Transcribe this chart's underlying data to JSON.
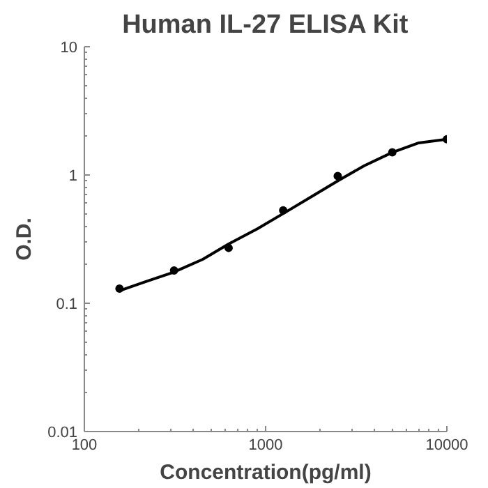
{
  "chart_data": {
    "type": "scatter",
    "title": "Human IL-27 ELISA Kit",
    "xlabel": "Concentration(pg/ml)",
    "ylabel": "O.D.",
    "log": "xy",
    "grid": false,
    "marker": "circle",
    "xlim": [
      100,
      10000
    ],
    "xticks": [
      100,
      1000,
      10000
    ],
    "ylim": [
      0.01,
      10
    ],
    "yticks": [
      0.01,
      0.1,
      1,
      10
    ],
    "series": [
      {
        "color": "#000000",
        "x": [
          156.25,
          312.5,
          625,
          1250,
          2500,
          5000,
          10000
        ],
        "values": [
          0.13,
          0.18,
          0.27,
          0.53,
          0.98,
          1.5,
          1.9
        ]
      },
      {
        "type": "line",
        "color": "#000000",
        "marker": "none",
        "x": [
          156,
          220,
          312,
          450,
          625,
          900,
          1250,
          1800,
          2500,
          3500,
          5000,
          7000,
          10000
        ],
        "values": [
          0.125,
          0.148,
          0.175,
          0.22,
          0.29,
          0.38,
          0.5,
          0.68,
          0.9,
          1.18,
          1.5,
          1.78,
          1.9
        ]
      }
    ]
  }
}
